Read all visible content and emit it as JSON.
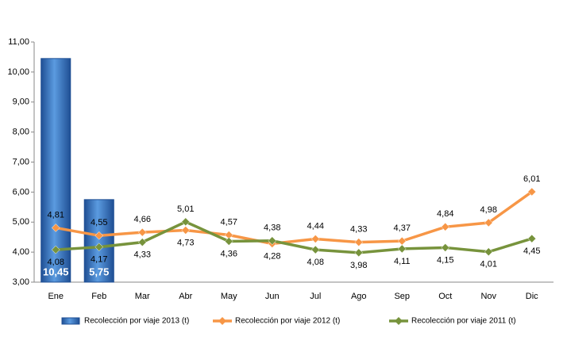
{
  "chart_data": {
    "type": "combo",
    "categories": [
      "Ene",
      "Feb",
      "Mar",
      "Abr",
      "May",
      "Jun",
      "Jul",
      "Ago",
      "Sep",
      "Oct",
      "Nov",
      "Dic"
    ],
    "ylim": [
      3,
      11
    ],
    "yticks": [
      {
        "value": 3,
        "label": "3,00"
      },
      {
        "value": 4,
        "label": "4,00"
      },
      {
        "value": 5,
        "label": "5,00"
      },
      {
        "value": 6,
        "label": "6,00"
      },
      {
        "value": 7,
        "label": "7,00"
      },
      {
        "value": 8,
        "label": "8,00"
      },
      {
        "value": 9,
        "label": "9,00"
      },
      {
        "value": 10,
        "label": "10,00"
      },
      {
        "value": 11,
        "label": "11,00"
      }
    ],
    "legend": "bottom",
    "series": [
      {
        "name": "Recolección por viaje 2013 (t)",
        "type": "bar",
        "color": "#2e6fc0",
        "values": [
          10.45,
          5.75,
          null,
          null,
          null,
          null,
          null,
          null,
          null,
          null,
          null,
          null
        ],
        "value_labels": [
          "10,45",
          "5,75",
          null,
          null,
          null,
          null,
          null,
          null,
          null,
          null,
          null,
          null
        ]
      },
      {
        "name": "Recolección por viaje 2012 (t)",
        "type": "line",
        "color": "#f79646",
        "values": [
          4.81,
          4.55,
          4.66,
          4.73,
          4.57,
          4.28,
          4.44,
          4.33,
          4.37,
          4.84,
          4.98,
          6.01
        ],
        "value_labels": [
          "4,81",
          "4,55",
          "4,66",
          "4,73",
          "4,57",
          "4,28",
          "4,44",
          "4,33",
          "4,37",
          "4,84",
          "4,98",
          "6,01"
        ]
      },
      {
        "name": "Recolección por viaje 2011 (t)",
        "type": "line",
        "color": "#77933c",
        "values": [
          4.08,
          4.17,
          4.33,
          5.01,
          4.36,
          4.38,
          4.08,
          3.98,
          4.11,
          4.15,
          4.01,
          4.45
        ],
        "value_labels": [
          "4,08",
          "4,17",
          "4,33",
          "5,01",
          "4,36",
          "4,38",
          "4,08",
          "3,98",
          "4,11",
          "4,15",
          "4,01",
          "4,45"
        ]
      }
    ]
  }
}
